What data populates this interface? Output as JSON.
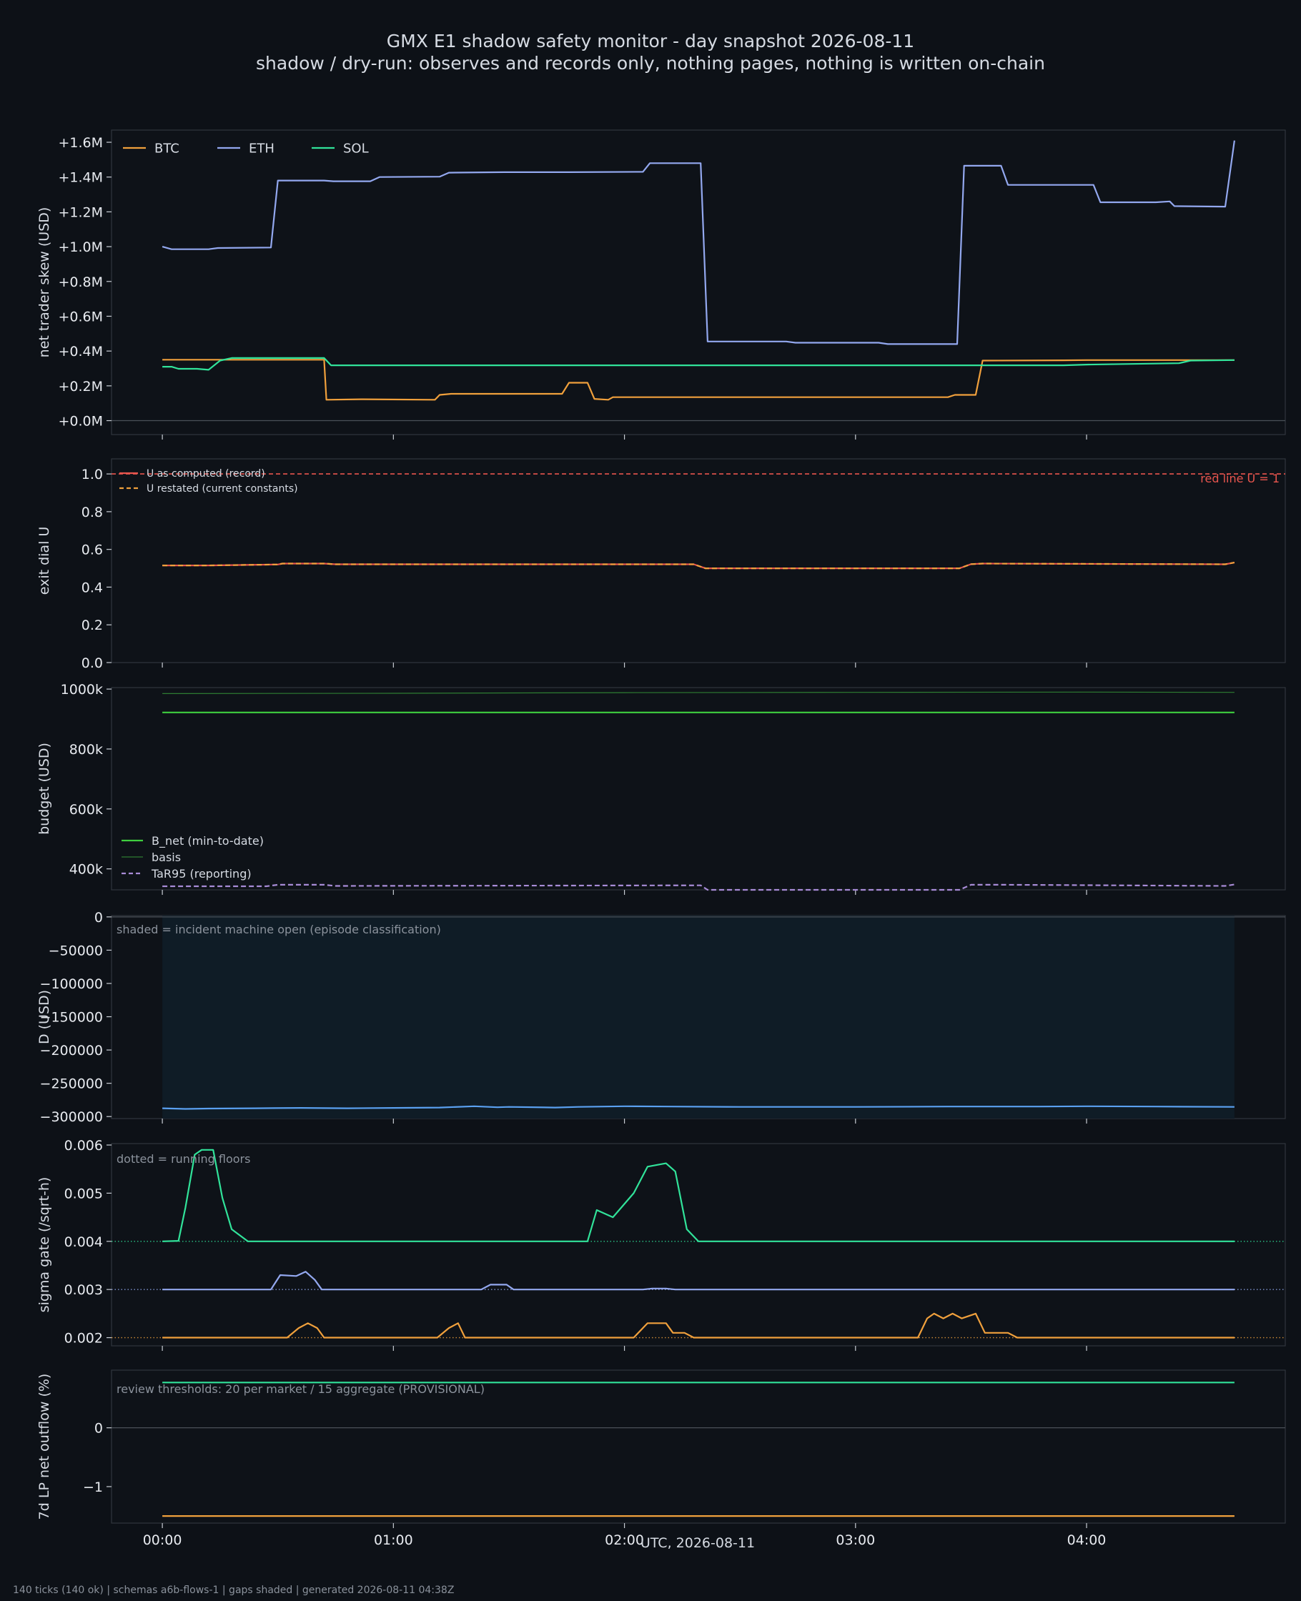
{
  "title": "GMX E1 shadow safety monitor - day snapshot 2026-08-11",
  "subtitle": "shadow / dry-run: observes and records only, nothing pages, nothing is written on-chain",
  "footer": "140 ticks (140 ok) | schemas a6b-flows-1 | gaps shaded | generated 2026-08-11 04:38Z",
  "colors": {
    "background": "#0d1117",
    "panel": "#0e1218",
    "frame": "#30363d",
    "text": "#d6dbe3",
    "muted": "#8b929c",
    "btc": "#f0a03c",
    "eth": "#93a8ef",
    "sol": "#31e39a",
    "red_line": "#e8554e",
    "b_net": "#3fcf3f",
    "basis": "#2e7d32",
    "tar95": "#a78bd6",
    "d_line": "#5aa0f0",
    "incident_shade": "#0f1c26"
  },
  "chart_data": [
    {
      "id": "skew",
      "type": "line",
      "ylabel": "net trader skew (USD)",
      "ylim": [
        -0.08,
        1.67
      ],
      "yticks": [
        0,
        0.2,
        0.4,
        0.6,
        0.8,
        1.0,
        1.2,
        1.4,
        1.6
      ],
      "ytick_labels": [
        "+0.0M",
        "+0.2M",
        "+0.4M",
        "+0.6M",
        "+0.8M",
        "+1.0M",
        "+1.2M",
        "+1.4M",
        "+1.6M"
      ],
      "y_units": "USD millions",
      "legend": "top-left",
      "series": [
        {
          "name": "BTC",
          "color": "#f0a03c",
          "points": [
            [
              0,
              0.35
            ],
            [
              0.7,
              0.35
            ],
            [
              0.71,
              0.12
            ],
            [
              0.86,
              0.123
            ],
            [
              1.18,
              0.12
            ],
            [
              1.2,
              0.148
            ],
            [
              1.25,
              0.154
            ],
            [
              1.73,
              0.154
            ],
            [
              1.76,
              0.218
            ],
            [
              1.84,
              0.218
            ],
            [
              1.87,
              0.125
            ],
            [
              1.93,
              0.12
            ],
            [
              1.95,
              0.135
            ],
            [
              2.05,
              0.135
            ],
            [
              2.35,
              0.135
            ],
            [
              3.4,
              0.135
            ],
            [
              3.43,
              0.148
            ],
            [
              3.52,
              0.148
            ],
            [
              3.55,
              0.345
            ],
            [
              3.9,
              0.347
            ],
            [
              4.0,
              0.348
            ],
            [
              4.64,
              0.348
            ]
          ]
        },
        {
          "name": "ETH",
          "color": "#93a8ef",
          "points": [
            [
              0,
              1.0
            ],
            [
              0.04,
              0.985
            ],
            [
              0.2,
              0.985
            ],
            [
              0.24,
              0.992
            ],
            [
              0.47,
              0.995
            ],
            [
              0.5,
              1.38
            ],
            [
              0.7,
              1.38
            ],
            [
              0.74,
              1.376
            ],
            [
              0.9,
              1.376
            ],
            [
              0.94,
              1.4
            ],
            [
              1.2,
              1.402
            ],
            [
              1.24,
              1.425
            ],
            [
              1.48,
              1.428
            ],
            [
              1.76,
              1.428
            ],
            [
              2.08,
              1.43
            ],
            [
              2.11,
              1.48
            ],
            [
              2.33,
              1.48
            ],
            [
              2.36,
              0.455
            ],
            [
              2.7,
              0.455
            ],
            [
              2.74,
              0.448
            ],
            [
              3.1,
              0.448
            ],
            [
              3.14,
              0.44
            ],
            [
              3.44,
              0.44
            ],
            [
              3.47,
              1.465
            ],
            [
              3.63,
              1.465
            ],
            [
              3.66,
              1.355
            ],
            [
              4.03,
              1.355
            ],
            [
              4.06,
              1.255
            ],
            [
              4.3,
              1.255
            ],
            [
              4.36,
              1.26
            ],
            [
              4.38,
              1.233
            ],
            [
              4.6,
              1.23
            ],
            [
              4.64,
              1.61
            ]
          ]
        },
        {
          "name": "SOL",
          "color": "#31e39a",
          "points": [
            [
              0,
              0.31
            ],
            [
              0.04,
              0.31
            ],
            [
              0.07,
              0.298
            ],
            [
              0.15,
              0.298
            ],
            [
              0.2,
              0.292
            ],
            [
              0.25,
              0.345
            ],
            [
              0.3,
              0.36
            ],
            [
              0.7,
              0.36
            ],
            [
              0.73,
              0.318
            ],
            [
              1.0,
              0.318
            ],
            [
              3.9,
              0.318
            ],
            [
              4.0,
              0.322
            ],
            [
              4.4,
              0.33
            ],
            [
              4.45,
              0.345
            ],
            [
              4.64,
              0.348
            ]
          ]
        }
      ]
    },
    {
      "id": "exit_dial",
      "type": "line",
      "ylabel": "exit dial U",
      "ylim": [
        0,
        1.08
      ],
      "yticks": [
        0,
        0.2,
        0.4,
        0.6,
        0.8,
        1.0
      ],
      "ytick_labels": [
        "0.0",
        "0.2",
        "0.4",
        "0.6",
        "0.8",
        "1.0"
      ],
      "legend": "top-left",
      "annotation": "red line U = 1",
      "red_line": 1.0,
      "series": [
        {
          "name": "U as computed (record)",
          "color": "#e8554e",
          "points": [
            [
              0,
              0.515
            ],
            [
              0.2,
              0.515
            ],
            [
              0.5,
              0.52
            ],
            [
              0.52,
              0.525
            ],
            [
              0.7,
              0.525
            ],
            [
              0.75,
              0.521
            ],
            [
              1.0,
              0.521
            ],
            [
              2.3,
              0.521
            ],
            [
              2.35,
              0.5
            ],
            [
              3.45,
              0.5
            ],
            [
              3.5,
              0.522
            ],
            [
              3.55,
              0.525
            ],
            [
              4.6,
              0.521
            ],
            [
              4.64,
              0.53
            ]
          ]
        },
        {
          "name": "U restated (current constants)",
          "color": "#f0a03c",
          "dashed": true,
          "points": [
            [
              0,
              0.515
            ],
            [
              0.2,
              0.515
            ],
            [
              0.5,
              0.52
            ],
            [
              0.52,
              0.525
            ],
            [
              0.7,
              0.525
            ],
            [
              0.75,
              0.521
            ],
            [
              1.0,
              0.521
            ],
            [
              2.3,
              0.521
            ],
            [
              2.35,
              0.5
            ],
            [
              3.45,
              0.5
            ],
            [
              3.5,
              0.522
            ],
            [
              3.55,
              0.525
            ],
            [
              4.6,
              0.521
            ],
            [
              4.64,
              0.53
            ]
          ]
        }
      ]
    },
    {
      "id": "budget",
      "type": "line",
      "ylabel": "budget (USD)",
      "ylim": [
        330,
        1005
      ],
      "yticks": [
        400,
        600,
        800,
        1000
      ],
      "ytick_labels": [
        "400k",
        "600k",
        "800k",
        "1000k"
      ],
      "y_units": "USD thousands",
      "legend": "lower-left",
      "series": [
        {
          "name": "B_net (min-to-date)",
          "color": "#3fcf3f",
          "points": [
            [
              0,
              922
            ],
            [
              4.64,
              922
            ]
          ]
        },
        {
          "name": "basis",
          "color": "#2e7d32",
          "thin": true,
          "points": [
            [
              0,
              985
            ],
            [
              1.0,
              986
            ],
            [
              2.0,
              988
            ],
            [
              3.0,
              989
            ],
            [
              4.0,
              990
            ],
            [
              4.64,
              989
            ]
          ]
        },
        {
          "name": "TaR95 (reporting)",
          "color": "#a78bd6",
          "dashed": true,
          "points": [
            [
              0,
              342
            ],
            [
              0.45,
              342
            ],
            [
              0.5,
              347
            ],
            [
              0.7,
              347
            ],
            [
              0.75,
              343
            ],
            [
              2.33,
              345
            ],
            [
              2.36,
              330
            ],
            [
              3.45,
              330
            ],
            [
              3.5,
              347
            ],
            [
              3.65,
              347
            ],
            [
              4.6,
              343
            ],
            [
              4.64,
              348
            ]
          ]
        }
      ]
    },
    {
      "id": "drawdown",
      "type": "line",
      "ylabel": "D (USD)",
      "ylim": [
        -303000,
        2000
      ],
      "yticks": [
        0,
        -50000,
        -100000,
        -150000,
        -200000,
        -250000,
        -300000
      ],
      "ytick_labels": [
        "0",
        "−50000",
        "−100000",
        "−150000",
        "−200000",
        "−250000",
        "−300000"
      ],
      "note": "shaded = incident machine open (episode classification)",
      "shaded": [
        [
          0,
          4.64
        ]
      ],
      "series": [
        {
          "name": "D",
          "color": "#5aa0f0",
          "points": [
            [
              0,
              -287500
            ],
            [
              0.1,
              -288500
            ],
            [
              0.2,
              -288000
            ],
            [
              0.4,
              -287500
            ],
            [
              0.6,
              -287000
            ],
            [
              0.8,
              -287500
            ],
            [
              1.0,
              -287000
            ],
            [
              1.2,
              -286500
            ],
            [
              1.35,
              -284500
            ],
            [
              1.45,
              -286000
            ],
            [
              1.5,
              -285500
            ],
            [
              1.7,
              -286500
            ],
            [
              1.8,
              -285500
            ],
            [
              2.0,
              -284500
            ],
            [
              2.2,
              -285000
            ],
            [
              2.5,
              -285500
            ],
            [
              3.0,
              -285500
            ],
            [
              3.4,
              -285000
            ],
            [
              3.8,
              -285000
            ],
            [
              4.0,
              -284500
            ],
            [
              4.3,
              -285000
            ],
            [
              4.64,
              -285500
            ]
          ]
        }
      ]
    },
    {
      "id": "sigma_gate",
      "type": "line",
      "ylabel": "sigma gate (/sqrt-h)",
      "ylim": [
        0.00183,
        0.00603
      ],
      "yticks": [
        0.002,
        0.003,
        0.004,
        0.005,
        0.006
      ],
      "ytick_labels": [
        "0.002",
        "0.003",
        "0.004",
        "0.005",
        "0.006"
      ],
      "note": "dotted = running floors",
      "floors": [
        {
          "value": 0.002,
          "color": "#f0a03c"
        },
        {
          "value": 0.003,
          "color": "#93a8ef"
        },
        {
          "value": 0.004,
          "color": "#31e39a"
        }
      ],
      "series": [
        {
          "name": "SOL",
          "color": "#31e39a",
          "points": [
            [
              0,
              0.004
            ],
            [
              0.07,
              0.00401
            ],
            [
              0.1,
              0.0047
            ],
            [
              0.14,
              0.0058
            ],
            [
              0.17,
              0.0059
            ],
            [
              0.22,
              0.0059
            ],
            [
              0.26,
              0.0049
            ],
            [
              0.3,
              0.00425
            ],
            [
              0.37,
              0.004
            ],
            [
              1.84,
              0.004
            ],
            [
              1.88,
              0.00465
            ],
            [
              1.95,
              0.0045
            ],
            [
              2.04,
              0.005
            ],
            [
              2.1,
              0.00555
            ],
            [
              2.18,
              0.00562
            ],
            [
              2.22,
              0.00545
            ],
            [
              2.27,
              0.00425
            ],
            [
              2.32,
              0.004
            ],
            [
              4.64,
              0.004
            ]
          ]
        },
        {
          "name": "ETH",
          "color": "#93a8ef",
          "points": [
            [
              0,
              0.003
            ],
            [
              0.47,
              0.003
            ],
            [
              0.51,
              0.0033
            ],
            [
              0.58,
              0.00328
            ],
            [
              0.62,
              0.00337
            ],
            [
              0.66,
              0.0032
            ],
            [
              0.69,
              0.003
            ],
            [
              1.38,
              0.003
            ],
            [
              1.42,
              0.0031
            ],
            [
              1.49,
              0.0031
            ],
            [
              1.52,
              0.003
            ],
            [
              2.08,
              0.003
            ],
            [
              2.12,
              0.00302
            ],
            [
              2.18,
              0.00302
            ],
            [
              2.22,
              0.003
            ],
            [
              4.64,
              0.003
            ]
          ]
        },
        {
          "name": "BTC",
          "color": "#f0a03c",
          "points": [
            [
              0,
              0.002
            ],
            [
              0.54,
              0.002
            ],
            [
              0.59,
              0.0022
            ],
            [
              0.63,
              0.0023
            ],
            [
              0.67,
              0.0022
            ],
            [
              0.7,
              0.002
            ],
            [
              1.19,
              0.002
            ],
            [
              1.24,
              0.0022
            ],
            [
              1.28,
              0.0023
            ],
            [
              1.31,
              0.002
            ],
            [
              2.04,
              0.002
            ],
            [
              2.1,
              0.0023
            ],
            [
              2.18,
              0.0023
            ],
            [
              2.21,
              0.0021
            ],
            [
              2.26,
              0.0021
            ],
            [
              2.3,
              0.002
            ],
            [
              3.27,
              0.002
            ],
            [
              3.31,
              0.0024
            ],
            [
              3.34,
              0.0025
            ],
            [
              3.38,
              0.0024
            ],
            [
              3.42,
              0.0025
            ],
            [
              3.46,
              0.0024
            ],
            [
              3.52,
              0.0025
            ],
            [
              3.56,
              0.0021
            ],
            [
              3.66,
              0.0021
            ],
            [
              3.7,
              0.002
            ],
            [
              4.64,
              0.002
            ]
          ]
        }
      ]
    },
    {
      "id": "lp_outflow",
      "type": "line",
      "ylabel": "7d LP net outflow (%)",
      "ylim": [
        -1.62,
        0.98
      ],
      "yticks": [
        0,
        -1
      ],
      "ytick_labels": [
        "0",
        "−1"
      ],
      "note": "review thresholds: 20 per market / 15 aggregate (PROVISIONAL)",
      "series": [
        {
          "name": "SOL",
          "color": "#31e39a",
          "points": [
            [
              0,
              0.77
            ],
            [
              4.64,
              0.77
            ]
          ]
        },
        {
          "name": "BTC",
          "color": "#f0a03c",
          "points": [
            [
              0,
              -1.5
            ],
            [
              4.64,
              -1.5
            ]
          ]
        }
      ]
    }
  ],
  "x_axis": {
    "label": "UTC, 2026-08-11",
    "xlim": [
      -0.22,
      4.86
    ],
    "ticks": [
      0,
      1,
      2,
      3,
      4
    ],
    "tick_labels": [
      "00:00",
      "01:00",
      "02:00",
      "03:00",
      "04:00"
    ],
    "units": "hours"
  }
}
